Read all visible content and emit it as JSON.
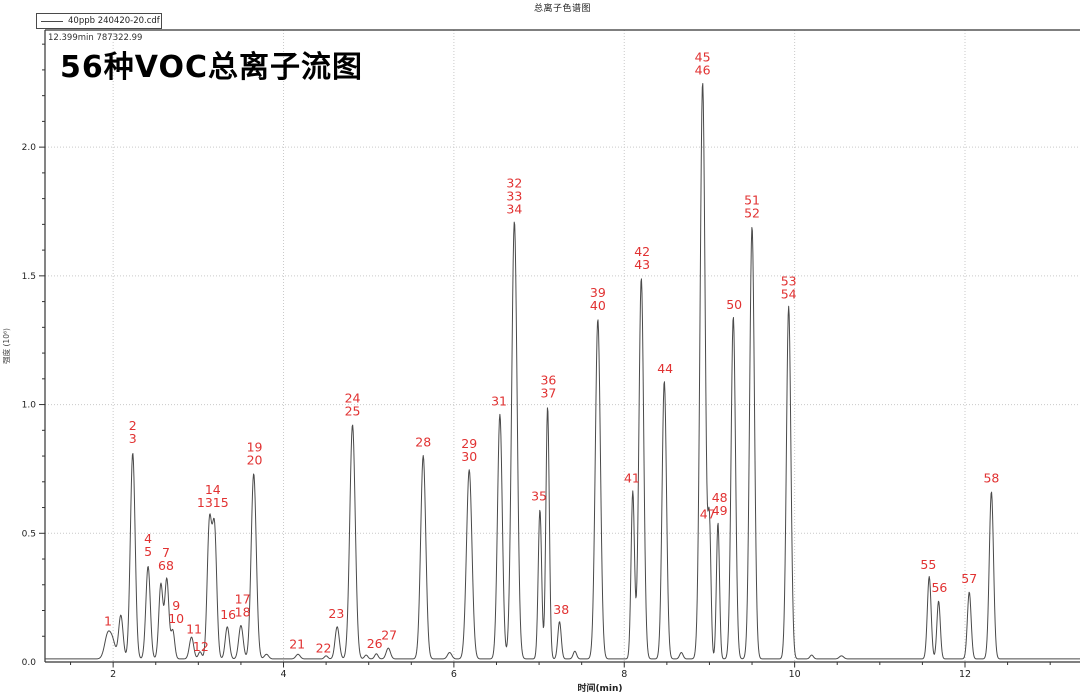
{
  "window": {
    "title": "总离子色谱图"
  },
  "legend": {
    "series_label": "40ppb 240420-20.cdf"
  },
  "overlay": {
    "heading": "56种VOC总离子流图",
    "cursor_readout": "12.399min  787322.99"
  },
  "colors": {
    "curve": "#4a4a4a",
    "peak_label": "#e13232",
    "grid": "#c9c9c9",
    "axis": "#333333",
    "tick_text": "#222222"
  },
  "chart_data": {
    "type": "line",
    "title": "总离子色谱图",
    "xlabel": "时间(min)",
    "ylabel": "强度 (10⁶)",
    "xlim": [
      1.2,
      13.35
    ],
    "ylim": [
      0,
      2.455
    ],
    "x_major_ticks": [
      2,
      4,
      6,
      8,
      10,
      12
    ],
    "x_minor_step": 0.5,
    "y_major_ticks": [
      0.0,
      0.5,
      1.0,
      1.5,
      2.0
    ],
    "y_minor_step": 0.1,
    "grid": "dotted-at-major-ticks",
    "legend_position": "top-left-outside",
    "baseline_intensity": 0.012,
    "peaks": [
      {
        "t": 1.94,
        "h": 0.1,
        "w": 0.038
      },
      {
        "t": 2.0,
        "h": 0.05,
        "w": 0.03
      },
      {
        "t": 2.09,
        "h": 0.17,
        "w": 0.026
      },
      {
        "t": 2.23,
        "h": 0.8,
        "w": 0.028
      },
      {
        "t": 2.41,
        "h": 0.36,
        "w": 0.026
      },
      {
        "t": 2.56,
        "h": 0.29,
        "w": 0.024
      },
      {
        "t": 2.63,
        "h": 0.31,
        "w": 0.024
      },
      {
        "t": 2.7,
        "h": 0.11,
        "w": 0.022
      },
      {
        "t": 2.92,
        "h": 0.085,
        "w": 0.025
      },
      {
        "t": 3.02,
        "h": 0.028,
        "w": 0.02
      },
      {
        "t": 3.13,
        "h": 0.52,
        "w": 0.026
      },
      {
        "t": 3.19,
        "h": 0.5,
        "w": 0.026
      },
      {
        "t": 3.34,
        "h": 0.125,
        "w": 0.024
      },
      {
        "t": 3.5,
        "h": 0.13,
        "w": 0.026
      },
      {
        "t": 3.65,
        "h": 0.72,
        "w": 0.03
      },
      {
        "t": 3.8,
        "h": 0.018,
        "w": 0.025
      },
      {
        "t": 4.17,
        "h": 0.018,
        "w": 0.025
      },
      {
        "t": 4.5,
        "h": 0.012,
        "w": 0.02
      },
      {
        "t": 4.63,
        "h": 0.125,
        "w": 0.025
      },
      {
        "t": 4.81,
        "h": 0.91,
        "w": 0.032
      },
      {
        "t": 4.97,
        "h": 0.015,
        "w": 0.02
      },
      {
        "t": 5.09,
        "h": 0.02,
        "w": 0.02
      },
      {
        "t": 5.23,
        "h": 0.042,
        "w": 0.025
      },
      {
        "t": 5.64,
        "h": 0.79,
        "w": 0.03
      },
      {
        "t": 5.95,
        "h": 0.025,
        "w": 0.025
      },
      {
        "t": 6.18,
        "h": 0.735,
        "w": 0.032
      },
      {
        "t": 6.54,
        "h": 0.95,
        "w": 0.028
      },
      {
        "t": 6.71,
        "h": 1.7,
        "w": 0.032
      },
      {
        "t": 7.01,
        "h": 0.58,
        "w": 0.02
      },
      {
        "t": 7.1,
        "h": 0.98,
        "w": 0.02
      },
      {
        "t": 7.24,
        "h": 0.145,
        "w": 0.02
      },
      {
        "t": 7.42,
        "h": 0.03,
        "w": 0.02
      },
      {
        "t": 7.69,
        "h": 1.32,
        "w": 0.03
      },
      {
        "t": 8.1,
        "h": 0.65,
        "w": 0.02
      },
      {
        "t": 8.2,
        "h": 1.48,
        "w": 0.028
      },
      {
        "t": 8.47,
        "h": 1.08,
        "w": 0.026
      },
      {
        "t": 8.67,
        "h": 0.025,
        "w": 0.02
      },
      {
        "t": 8.92,
        "h": 2.24,
        "w": 0.03
      },
      {
        "t": 9.0,
        "h": 0.51,
        "w": 0.018
      },
      {
        "t": 9.1,
        "h": 0.53,
        "w": 0.018
      },
      {
        "t": 9.28,
        "h": 1.33,
        "w": 0.026
      },
      {
        "t": 9.5,
        "h": 1.68,
        "w": 0.028
      },
      {
        "t": 9.93,
        "h": 1.37,
        "w": 0.026
      },
      {
        "t": 10.2,
        "h": 0.015,
        "w": 0.02
      },
      {
        "t": 10.55,
        "h": 0.012,
        "w": 0.025
      },
      {
        "t": 11.58,
        "h": 0.32,
        "w": 0.022
      },
      {
        "t": 11.69,
        "h": 0.225,
        "w": 0.02
      },
      {
        "t": 12.05,
        "h": 0.26,
        "w": 0.022
      },
      {
        "t": 12.31,
        "h": 0.65,
        "w": 0.025
      }
    ],
    "peak_labels": [
      {
        "t": 1.94,
        "v": 0.13,
        "lines": [
          "1"
        ]
      },
      {
        "t": 2.23,
        "v": 0.84,
        "lines": [
          "2",
          "3"
        ]
      },
      {
        "t": 2.41,
        "v": 0.4,
        "lines": [
          "4",
          "5"
        ]
      },
      {
        "t": 2.62,
        "v": 0.345,
        "lines": [
          "7",
          "68"
        ]
      },
      {
        "t": 2.74,
        "v": 0.14,
        "lines": [
          "9",
          "10"
        ]
      },
      {
        "t": 2.95,
        "v": 0.1,
        "lines": [
          "11"
        ]
      },
      {
        "t": 3.03,
        "v": 0.032,
        "lines": [
          "12"
        ]
      },
      {
        "t": 3.17,
        "v": 0.59,
        "lines": [
          "14",
          "1315"
        ]
      },
      {
        "t": 3.35,
        "v": 0.155,
        "lines": [
          "16"
        ]
      },
      {
        "t": 3.52,
        "v": 0.165,
        "lines": [
          "17",
          "18"
        ]
      },
      {
        "t": 3.66,
        "v": 0.755,
        "lines": [
          "19",
          "20"
        ]
      },
      {
        "t": 4.16,
        "v": 0.04,
        "lines": [
          "21"
        ]
      },
      {
        "t": 4.47,
        "v": 0.025,
        "lines": [
          "22"
        ]
      },
      {
        "t": 4.62,
        "v": 0.16,
        "lines": [
          "23"
        ]
      },
      {
        "t": 4.81,
        "v": 0.945,
        "lines": [
          "24",
          "25"
        ]
      },
      {
        "t": 5.07,
        "v": 0.042,
        "lines": [
          "26"
        ]
      },
      {
        "t": 5.24,
        "v": 0.075,
        "lines": [
          "27"
        ]
      },
      {
        "t": 5.64,
        "v": 0.825,
        "lines": [
          "28"
        ]
      },
      {
        "t": 6.18,
        "v": 0.77,
        "lines": [
          "29",
          "30"
        ]
      },
      {
        "t": 6.53,
        "v": 0.985,
        "lines": [
          "31"
        ]
      },
      {
        "t": 6.71,
        "v": 1.73,
        "lines": [
          "32",
          "33",
          "34"
        ]
      },
      {
        "t": 7.0,
        "v": 0.615,
        "lines": [
          "35"
        ]
      },
      {
        "t": 7.11,
        "v": 1.015,
        "lines": [
          "36",
          "37"
        ]
      },
      {
        "t": 7.26,
        "v": 0.175,
        "lines": [
          "38"
        ]
      },
      {
        "t": 7.69,
        "v": 1.355,
        "lines": [
          "39",
          "40"
        ]
      },
      {
        "t": 8.09,
        "v": 0.685,
        "lines": [
          "41"
        ]
      },
      {
        "t": 8.21,
        "v": 1.515,
        "lines": [
          "42",
          "43"
        ]
      },
      {
        "t": 8.48,
        "v": 1.11,
        "lines": [
          "44"
        ]
      },
      {
        "t": 8.92,
        "v": 2.27,
        "lines": [
          "45",
          "46"
        ]
      },
      {
        "t": 8.98,
        "v": 0.545,
        "lines": [
          "47"
        ]
      },
      {
        "t": 9.12,
        "v": 0.56,
        "lines": [
          "48",
          "49"
        ]
      },
      {
        "t": 9.29,
        "v": 1.36,
        "lines": [
          "50"
        ]
      },
      {
        "t": 9.5,
        "v": 1.715,
        "lines": [
          "51",
          "52"
        ]
      },
      {
        "t": 9.93,
        "v": 1.4,
        "lines": [
          "53",
          "54"
        ]
      },
      {
        "t": 11.57,
        "v": 0.35,
        "lines": [
          "55"
        ]
      },
      {
        "t": 11.7,
        "v": 0.26,
        "lines": [
          "56"
        ]
      },
      {
        "t": 12.05,
        "v": 0.295,
        "lines": [
          "57"
        ]
      },
      {
        "t": 12.31,
        "v": 0.685,
        "lines": [
          "58"
        ]
      }
    ]
  }
}
